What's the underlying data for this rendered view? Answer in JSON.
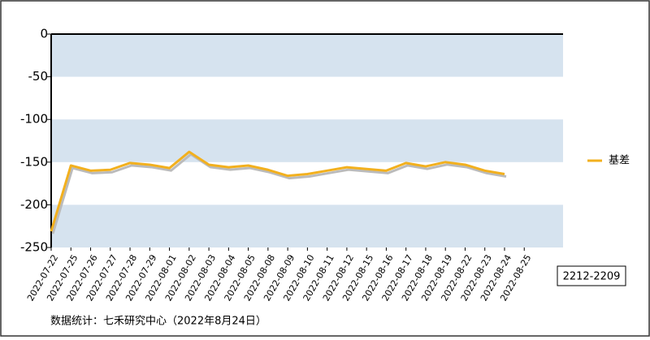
{
  "chart_data": {
    "type": "line",
    "categories": [
      "2022-07-22",
      "2022-07-25",
      "2022-07-26",
      "2022-07-27",
      "2022-07-28",
      "2022-07-29",
      "2022-08-01",
      "2022-08-02",
      "2022-08-03",
      "2022-08-04",
      "2022-08-05",
      "2022-08-08",
      "2022-08-09",
      "2022-08-10",
      "2022-08-11",
      "2022-08-12",
      "2022-08-15",
      "2022-08-16",
      "2022-08-17",
      "2022-08-18",
      "2022-08-19",
      "2022-08-22",
      "2022-08-23",
      "2022-08-24",
      "2022-08-25"
    ],
    "series": [
      {
        "name": "基差",
        "color": "#f2b01e",
        "values": [
          -231,
          -154,
          -160,
          -159,
          -151,
          -153,
          -157,
          -138,
          -153,
          -156,
          -154,
          -159,
          -166,
          -164,
          -160,
          -156,
          -158,
          -160,
          -151,
          -155,
          -150,
          -153,
          -160,
          -164,
          null
        ]
      }
    ],
    "ylim": [
      -250,
      0
    ],
    "yticks": [
      0,
      -50,
      -100,
      -150,
      -200,
      -250
    ],
    "band_color": "#d6e3ef",
    "legend": "right",
    "annotation": "2212-2209",
    "source": "数据统计：七禾研究中心（2022年8月24日）"
  }
}
